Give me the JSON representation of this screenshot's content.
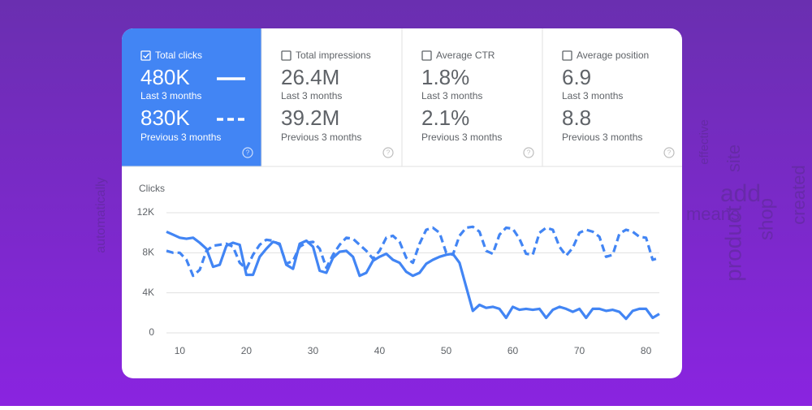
{
  "background_words": [
    "automatically",
    "effective",
    "site",
    "add",
    "means",
    "product",
    "shop",
    "created"
  ],
  "cards": [
    {
      "label": "Total clicks",
      "current": "480K",
      "current_period": "Last 3 months",
      "previous": "830K",
      "previous_period": "Previous 3 months",
      "selected": true
    },
    {
      "label": "Total impressions",
      "current": "26.4M",
      "current_period": "Last 3 months",
      "previous": "39.2M",
      "previous_period": "Previous 3 months",
      "selected": false
    },
    {
      "label": "Average CTR",
      "current": "1.8%",
      "current_period": "Last 3 months",
      "previous": "2.1%",
      "previous_period": "Previous 3 months",
      "selected": false
    },
    {
      "label": "Average position",
      "current": "6.9",
      "current_period": "Last 3 months",
      "previous": "8.8",
      "previous_period": "Previous 3 months",
      "selected": false
    }
  ],
  "chart_data": {
    "type": "line",
    "y_label": "Clicks",
    "x": [
      8,
      9,
      10,
      11,
      12,
      13,
      14,
      15,
      16,
      17,
      18,
      19,
      20,
      21,
      22,
      23,
      24,
      25,
      26,
      27,
      28,
      29,
      30,
      31,
      32,
      33,
      34,
      35,
      36,
      37,
      38,
      39,
      40,
      41,
      42,
      43,
      44,
      45,
      46,
      47,
      48,
      49,
      50,
      51,
      52,
      53,
      54,
      55,
      56,
      57,
      58,
      59,
      60,
      61,
      62,
      63,
      64,
      65,
      66,
      67,
      68,
      69,
      70,
      71,
      72,
      73,
      74,
      75,
      76,
      77,
      78,
      79,
      80,
      81,
      82
    ],
    "xlim": [
      8,
      82
    ],
    "xticks": [
      10,
      20,
      30,
      40,
      50,
      60,
      70,
      80
    ],
    "ylim": [
      0,
      12000
    ],
    "yticks": [
      0,
      {
        "value": 4000,
        "label": "4K"
      },
      {
        "value": 8000,
        "label": "8K"
      },
      {
        "value": 12000,
        "label": "12K"
      }
    ],
    "grid": true,
    "series": [
      {
        "name": "Last 3 months",
        "color": "#4285f4",
        "dash": false,
        "values": [
          10100,
          9800,
          9500,
          9400,
          9500,
          9000,
          8400,
          6600,
          6800,
          8700,
          9000,
          8800,
          5800,
          5800,
          7600,
          8400,
          9100,
          8900,
          6800,
          6400,
          8900,
          9200,
          8600,
          6200,
          6000,
          7500,
          8100,
          8200,
          7600,
          5700,
          6000,
          7200,
          7600,
          7900,
          7300,
          7000,
          6100,
          5700,
          6000,
          6900,
          7300,
          7600,
          7800,
          7900,
          7000,
          4600,
          2200,
          2800,
          2500,
          2600,
          2400,
          1500,
          2600,
          2300,
          2400,
          2300,
          2400,
          1500,
          2300,
          2600,
          2400,
          2100,
          2400,
          1500,
          2400,
          2400,
          2200,
          2300,
          2100,
          1400,
          2200,
          2400,
          2400,
          1500,
          1900
        ]
      },
      {
        "name": "Previous 3 months",
        "color": "#4285f4",
        "dash": true,
        "values": [
          8200,
          8000,
          8000,
          7300,
          5700,
          6300,
          8200,
          8700,
          8800,
          8900,
          8600,
          7000,
          6400,
          7800,
          8800,
          9300,
          9200,
          8800,
          6900,
          7200,
          8600,
          9000,
          9100,
          8400,
          6500,
          7800,
          8800,
          9500,
          9400,
          8800,
          8200,
          7400,
          8200,
          9500,
          9700,
          9100,
          7500,
          7000,
          8900,
          10300,
          10500,
          10000,
          8000,
          7800,
          9700,
          10500,
          10600,
          10100,
          8200,
          7900,
          9800,
          10500,
          10400,
          9400,
          7900,
          7800,
          10000,
          10500,
          10300,
          8600,
          7700,
          8500,
          10000,
          10300,
          10100,
          9600,
          7600,
          7800,
          9900,
          10300,
          10100,
          9600,
          9500,
          7300,
          7500
        ]
      }
    ]
  }
}
